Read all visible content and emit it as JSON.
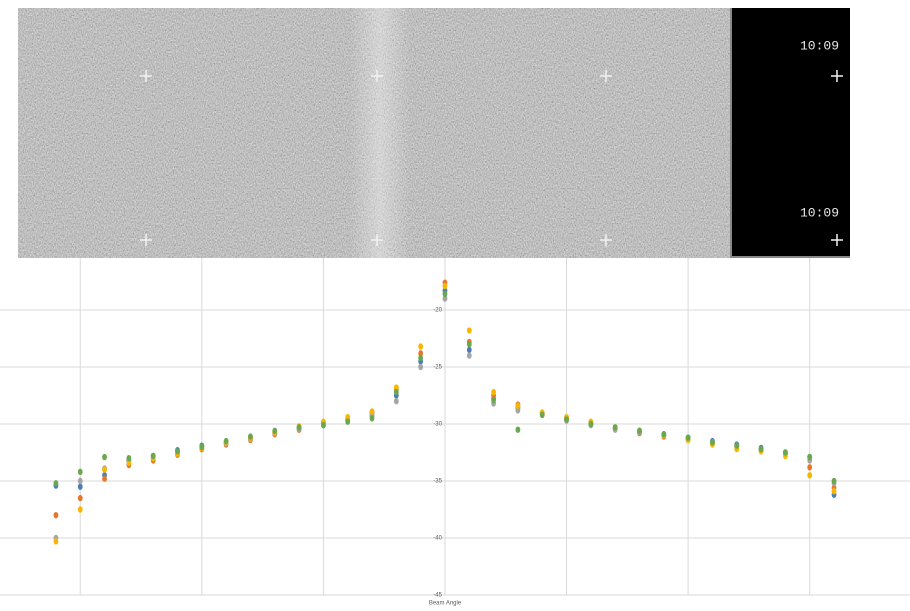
{
  "sonar": {
    "timestamps": [
      "10:09",
      "10:09"
    ]
  },
  "chart_data": {
    "type": "scatter",
    "x_label": "Beam Angle",
    "x": [
      -64,
      -60,
      -56,
      -52,
      -48,
      -44,
      -40,
      -36,
      -32,
      -28,
      -24,
      -20,
      -16,
      -12,
      -8,
      -4,
      0,
      4,
      8,
      12,
      16,
      20,
      24,
      28,
      32,
      36,
      40,
      44,
      48,
      52,
      56,
      60,
      64
    ],
    "series": [
      {
        "color": "#4a7ebb",
        "values": [
          -35.4,
          -35.5,
          -34.5,
          -33.2,
          -32.8,
          -32.3,
          -31.9,
          -31.6,
          -31.2,
          -30.8,
          -30.3,
          -29.9,
          -29.6,
          -29.2,
          -27.5,
          -24.5,
          -18.3,
          -23.5,
          -27.8,
          -28.6,
          -29.1,
          -29.6,
          -30.0,
          -30.3,
          -30.6,
          -30.9,
          -31.2,
          -31.5,
          -31.8,
          -32.1,
          -32.5,
          -32.9,
          -36.2
        ]
      },
      {
        "color": "#e8772e",
        "values": [
          -38.0,
          -36.5,
          -34.8,
          -33.6,
          -33.2,
          -32.7,
          -32.2,
          -31.8,
          -31.4,
          -30.9,
          -30.5,
          -30.0,
          -29.5,
          -29.0,
          -27.0,
          -23.8,
          -17.6,
          -22.8,
          -27.5,
          -28.3,
          -29.0,
          -29.5,
          -29.9,
          -30.4,
          -30.8,
          -31.1,
          -31.4,
          -31.7,
          -32.0,
          -32.3,
          -32.6,
          -33.8,
          -35.6
        ]
      },
      {
        "color": "#a5a5a5",
        "values": [
          -40.0,
          -35.0,
          -33.9,
          -33.4,
          -33.0,
          -32.5,
          -32.0,
          -31.7,
          -31.3,
          -30.8,
          -30.4,
          -30.1,
          -29.7,
          -29.3,
          -28.0,
          -25.0,
          -19.0,
          -24.0,
          -28.2,
          -28.8,
          -29.2,
          -29.7,
          -30.1,
          -30.5,
          -30.7,
          -31.0,
          -31.3,
          -31.6,
          -31.9,
          -32.2,
          -32.6,
          -33.2,
          -35.2
        ]
      },
      {
        "color": "#f5b700",
        "values": [
          -40.3,
          -37.5,
          -34.0,
          -33.4,
          -33.0,
          -32.6,
          -32.1,
          -31.6,
          -31.2,
          -30.7,
          -30.2,
          -29.8,
          -29.4,
          -28.9,
          -26.8,
          -23.2,
          -17.9,
          -21.8,
          -27.2,
          -28.4,
          -29.0,
          -29.4,
          -29.8,
          -30.3,
          -30.6,
          -31.0,
          -31.4,
          -31.8,
          -32.2,
          -32.4,
          -32.8,
          -34.5,
          -35.9
        ]
      },
      {
        "color": "#6aa84f",
        "values": [
          -35.2,
          -34.2,
          -32.9,
          -33.0,
          -32.8,
          -32.4,
          -32.0,
          -31.5,
          -31.1,
          -30.6,
          -30.3,
          -30.1,
          -29.8,
          -29.5,
          -27.2,
          -24.2,
          -18.6,
          -23.0,
          -27.9,
          -30.5,
          -29.2,
          -29.6,
          -30.0,
          -30.3,
          -30.6,
          -30.9,
          -31.2,
          -31.6,
          -31.9,
          -32.2,
          -32.5,
          -32.9,
          -35.0
        ]
      }
    ],
    "xlim": [
      -73.2,
      76.5
    ],
    "xticks": [
      -60,
      -40,
      -20,
      0,
      20,
      40,
      60
    ],
    "ylim": [
      -45,
      -15
    ],
    "yticks": [
      -45,
      -40,
      -35,
      -30,
      -25,
      -20
    ],
    "grid": true
  }
}
